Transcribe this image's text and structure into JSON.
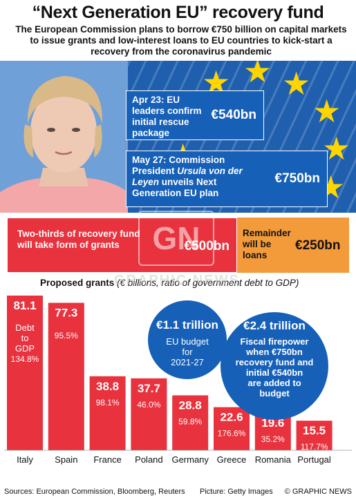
{
  "title": "“Next Generation EU” recovery fund",
  "subtitle": "The European Commission plans to borrow €750 billion on capital markets to issue grants and low-interest loans to EU countries to kick-start a recovery from the coronavirus pandemic",
  "callouts": [
    {
      "date_text": "Apr 23: EU leaders confirm initial rescue package",
      "amount": "€540bn"
    },
    {
      "date_text_pre": "May 27: Commission President ",
      "date_text_italic": "Ursula von der Leyen",
      "date_text_post": " unveils Next Generation EU plan",
      "amount": "€750bn"
    }
  ],
  "split": {
    "grants_text": "Two-thirds of recovery fund will take form of grants",
    "grants_amount": "€500bn",
    "loans_text": "Remainder will be loans",
    "loans_amount": "€250bn"
  },
  "grants_heading": {
    "bold": "Proposed grants",
    "italic": " (€ billions, ratio of government debt to GDP)"
  },
  "chart_data": {
    "type": "bar",
    "categories": [
      "Italy",
      "Spain",
      "France",
      "Poland",
      "Germany",
      "Greece",
      "Romania",
      "Portugal"
    ],
    "values": [
      81.1,
      77.3,
      38.8,
      37.7,
      28.8,
      22.6,
      19.6,
      15.5
    ],
    "value_labels": [
      "81.1",
      "77.3",
      "38.8",
      "37.7",
      "28.8",
      "22.6",
      "19.6",
      "15.5"
    ],
    "debt_to_gdp": [
      "134.8%",
      "95.5%",
      "98.1%",
      "46.0%",
      "59.8%",
      "176.6%",
      "35.2%",
      "117.7%"
    ],
    "debt_label": "Debt to GDP",
    "bar_color": "#e8323d",
    "ylim": [
      0,
      81.1
    ]
  },
  "bubbles": [
    {
      "headline": "€1.1 trillion",
      "body": "EU budget for 2021-27"
    },
    {
      "headline": "€2.4 trillion",
      "body": "Fiscal firepower when €750bn recovery fund and initial €540bn are added to budget"
    }
  ],
  "footer": {
    "sources": "Sources: European Commission, Bloomberg, Reuters",
    "picture": "Picture: Getty Images",
    "credit": "© GRAPHIC NEWS"
  },
  "watermark": {
    "logo": "GN",
    "text": "GRAPHIC NEWS"
  },
  "colors": {
    "blue": "#1660b8",
    "red": "#e8323d",
    "orange": "#f39a3a",
    "yellow": "#ffd500"
  }
}
